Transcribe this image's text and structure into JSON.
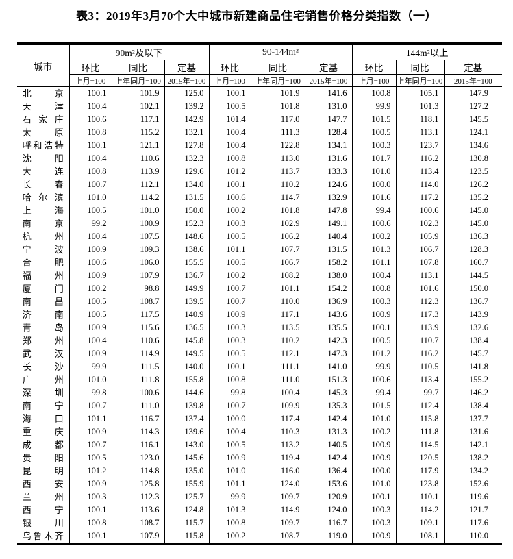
{
  "page": {
    "title": "表3：2019年3月70个大中城市新建商品住宅销售价格分类指数（一）"
  },
  "table": {
    "city_header": "城市",
    "col_groups": [
      {
        "label": "90m²及以下"
      },
      {
        "label": "90-144m²"
      },
      {
        "label": "144m²以上"
      }
    ],
    "sub_headers": [
      "环比",
      "同比",
      "定基"
    ],
    "base_headers": [
      "上月=100",
      "上年同月=100",
      "2015年=100"
    ],
    "rows": [
      {
        "city": "北京",
        "values": [
          "100.1",
          "101.9",
          "125.0",
          "100.1",
          "101.9",
          "141.6",
          "100.8",
          "105.1",
          "147.9"
        ]
      },
      {
        "city": "天津",
        "values": [
          "100.4",
          "102.1",
          "139.2",
          "100.5",
          "101.8",
          "131.0",
          "99.9",
          "101.3",
          "127.2"
        ]
      },
      {
        "city": "石家庄",
        "values": [
          "100.6",
          "117.1",
          "142.9",
          "101.4",
          "117.0",
          "147.7",
          "101.5",
          "118.1",
          "145.5"
        ]
      },
      {
        "city": "太原",
        "values": [
          "100.8",
          "115.2",
          "132.1",
          "100.4",
          "111.3",
          "128.4",
          "100.5",
          "113.1",
          "124.1"
        ]
      },
      {
        "city": "呼和浩特",
        "values": [
          "100.1",
          "121.1",
          "127.8",
          "100.4",
          "122.8",
          "134.1",
          "100.3",
          "123.7",
          "134.6"
        ]
      },
      {
        "city": "沈阳",
        "values": [
          "100.4",
          "110.6",
          "132.3",
          "100.8",
          "113.0",
          "131.6",
          "101.7",
          "116.2",
          "130.8"
        ]
      },
      {
        "city": "大连",
        "values": [
          "100.8",
          "113.9",
          "129.6",
          "101.2",
          "113.7",
          "133.3",
          "101.0",
          "113.4",
          "123.5"
        ]
      },
      {
        "city": "长春",
        "values": [
          "100.7",
          "112.1",
          "134.0",
          "100.1",
          "110.2",
          "124.6",
          "100.0",
          "114.0",
          "126.2"
        ]
      },
      {
        "city": "哈尔滨",
        "values": [
          "101.0",
          "114.2",
          "131.5",
          "100.6",
          "114.7",
          "132.9",
          "101.6",
          "117.2",
          "135.2"
        ]
      },
      {
        "city": "上海",
        "values": [
          "100.5",
          "101.0",
          "150.0",
          "100.2",
          "101.8",
          "147.8",
          "99.4",
          "100.6",
          "145.0"
        ]
      },
      {
        "city": "南京",
        "values": [
          "99.2",
          "100.9",
          "152.3",
          "100.3",
          "102.9",
          "149.1",
          "100.6",
          "102.3",
          "145.0"
        ]
      },
      {
        "city": "杭州",
        "values": [
          "100.4",
          "107.5",
          "148.6",
          "100.5",
          "106.2",
          "140.4",
          "100.2",
          "105.9",
          "136.3"
        ]
      },
      {
        "city": "宁波",
        "values": [
          "100.9",
          "109.3",
          "138.6",
          "101.1",
          "107.7",
          "131.5",
          "101.3",
          "106.7",
          "128.3"
        ]
      },
      {
        "city": "合肥",
        "values": [
          "100.6",
          "106.0",
          "155.5",
          "100.5",
          "106.7",
          "158.2",
          "101.1",
          "107.8",
          "160.7"
        ]
      },
      {
        "city": "福州",
        "values": [
          "100.9",
          "107.9",
          "136.7",
          "100.2",
          "108.2",
          "138.0",
          "100.4",
          "113.1",
          "144.5"
        ]
      },
      {
        "city": "厦门",
        "values": [
          "100.2",
          "98.8",
          "149.9",
          "100.7",
          "101.1",
          "154.2",
          "100.8",
          "101.6",
          "150.0"
        ]
      },
      {
        "city": "南昌",
        "values": [
          "100.5",
          "108.7",
          "139.5",
          "100.7",
          "110.0",
          "136.9",
          "100.3",
          "112.3",
          "136.7"
        ]
      },
      {
        "city": "济南",
        "values": [
          "100.5",
          "117.5",
          "140.9",
          "100.9",
          "117.1",
          "143.6",
          "100.9",
          "117.3",
          "143.9"
        ]
      },
      {
        "city": "青岛",
        "values": [
          "100.9",
          "115.6",
          "136.5",
          "100.3",
          "113.5",
          "135.5",
          "100.1",
          "113.9",
          "132.6"
        ]
      },
      {
        "city": "郑州",
        "values": [
          "100.4",
          "110.6",
          "145.8",
          "100.3",
          "110.2",
          "142.3",
          "100.5",
          "110.7",
          "138.4"
        ]
      },
      {
        "city": "武汉",
        "values": [
          "100.9",
          "114.9",
          "149.5",
          "100.5",
          "112.1",
          "147.3",
          "101.2",
          "116.2",
          "145.7"
        ]
      },
      {
        "city": "长沙",
        "values": [
          "99.9",
          "111.5",
          "140.0",
          "100.1",
          "111.1",
          "141.0",
          "99.9",
          "110.5",
          "141.8"
        ]
      },
      {
        "city": "广州",
        "values": [
          "101.0",
          "111.8",
          "155.8",
          "100.8",
          "111.0",
          "151.3",
          "100.6",
          "113.4",
          "155.2"
        ]
      },
      {
        "city": "深圳",
        "values": [
          "99.8",
          "100.6",
          "144.6",
          "99.8",
          "100.4",
          "145.3",
          "99.4",
          "99.7",
          "146.2"
        ]
      },
      {
        "city": "南宁",
        "values": [
          "100.7",
          "111.0",
          "139.8",
          "100.7",
          "109.9",
          "135.3",
          "101.5",
          "112.4",
          "138.4"
        ]
      },
      {
        "city": "海口",
        "values": [
          "101.1",
          "116.7",
          "137.4",
          "100.0",
          "117.4",
          "142.4",
          "101.0",
          "115.8",
          "137.7"
        ]
      },
      {
        "city": "重庆",
        "values": [
          "100.9",
          "114.3",
          "139.6",
          "100.4",
          "110.3",
          "131.3",
          "100.2",
          "111.8",
          "131.6"
        ]
      },
      {
        "city": "成都",
        "values": [
          "100.7",
          "116.1",
          "143.0",
          "100.5",
          "113.2",
          "140.5",
          "100.9",
          "114.5",
          "142.1"
        ]
      },
      {
        "city": "贵阳",
        "values": [
          "100.5",
          "123.0",
          "145.6",
          "100.9",
          "119.4",
          "142.4",
          "100.9",
          "120.5",
          "138.2"
        ]
      },
      {
        "city": "昆明",
        "values": [
          "101.2",
          "114.8",
          "135.0",
          "101.0",
          "116.0",
          "136.4",
          "100.0",
          "117.9",
          "134.2"
        ]
      },
      {
        "city": "西安",
        "values": [
          "100.9",
          "125.8",
          "155.9",
          "101.1",
          "124.0",
          "153.6",
          "101.0",
          "123.8",
          "152.6"
        ]
      },
      {
        "city": "兰州",
        "values": [
          "100.3",
          "112.3",
          "125.7",
          "99.9",
          "109.7",
          "120.9",
          "100.1",
          "110.1",
          "119.6"
        ]
      },
      {
        "city": "西宁",
        "values": [
          "100.1",
          "113.6",
          "124.8",
          "101.3",
          "114.9",
          "124.0",
          "100.3",
          "114.2",
          "121.7"
        ]
      },
      {
        "city": "银川",
        "values": [
          "100.8",
          "108.7",
          "115.7",
          "100.8",
          "109.7",
          "116.7",
          "100.3",
          "109.1",
          "117.6"
        ]
      },
      {
        "city": "乌鲁木齐",
        "values": [
          "100.1",
          "107.9",
          "115.8",
          "100.2",
          "108.7",
          "119.0",
          "100.9",
          "108.1",
          "110.0"
        ]
      }
    ]
  }
}
